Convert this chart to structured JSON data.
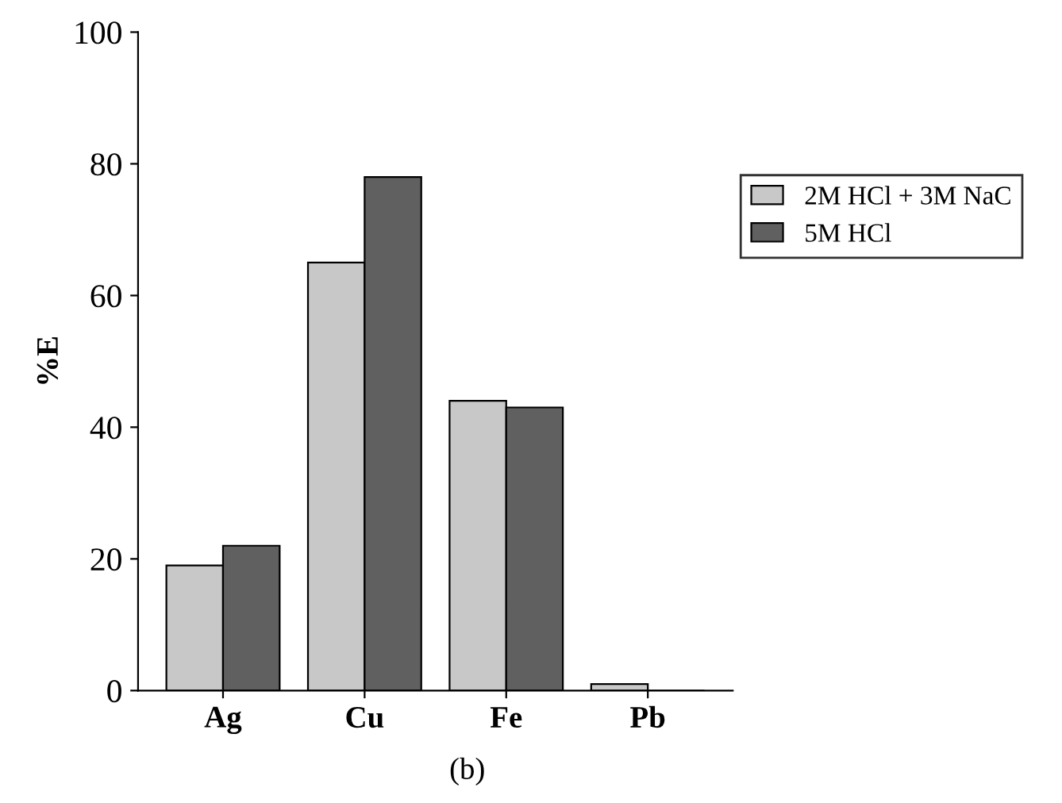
{
  "chart_data": {
    "type": "bar",
    "ylabel": "%E",
    "categories": [
      "Ag",
      "Cu",
      "Fe",
      "Pb"
    ],
    "series": [
      {
        "name": "2M HCl + 3M NaC",
        "color": "#c8c8c8",
        "values": [
          19,
          65,
          44,
          1
        ]
      },
      {
        "name": "5M HCl",
        "color": "#606060",
        "values": [
          22,
          78,
          43,
          0
        ]
      }
    ],
    "ylim": [
      0,
      100
    ],
    "yticks": [
      0,
      20,
      40,
      60,
      80,
      100
    ],
    "grid": false,
    "legend": "right",
    "annotations": [
      "(b)"
    ]
  }
}
